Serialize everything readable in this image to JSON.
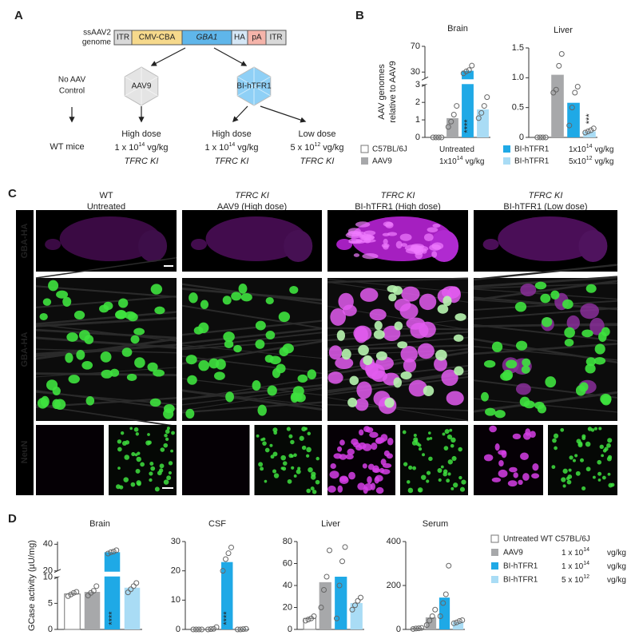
{
  "panel_labels": [
    "A",
    "B",
    "C",
    "D"
  ],
  "diagram": {
    "genome_label": [
      "ssAAV2",
      "genome"
    ],
    "cassette": [
      "ITR",
      "CMV-CBA",
      "GBA1",
      "HA",
      "pA",
      "ITR"
    ],
    "capsids": [
      "AAV9",
      "BI-hTFR1"
    ],
    "control": [
      "No AAV",
      "Control"
    ],
    "wt_label": "WT mice",
    "groups": [
      {
        "dose": "High dose",
        "amount": {
          "base": "1 x 10",
          "exp": "14",
          "unit": "vg/kg"
        },
        "genotype": "TFRC KI"
      },
      {
        "dose": "High dose",
        "amount": {
          "base": "1 x 10",
          "exp": "14",
          "unit": "vg/kg"
        },
        "genotype": "TFRC KI"
      },
      {
        "dose": "Low dose",
        "amount": {
          "base": "5 x 10",
          "exp": "12",
          "unit": "vg/kg"
        },
        "genotype": "TFRC KI"
      }
    ]
  },
  "legend_b": [
    {
      "name": "C57BL/6J",
      "color": "#ffffff",
      "dose": {
        "base": "Untreated"
      }
    },
    {
      "name": "AAV9",
      "color": "#a7a8aa",
      "dose": {
        "base": "1x10",
        "exp": "14",
        "unit": "vg/kg"
      }
    },
    {
      "name": "BI-hTFR1",
      "color": "#1fa9e6",
      "dose": {
        "base": "1x10",
        "exp": "14",
        "unit": "vg/kg"
      }
    },
    {
      "name": "BI-hTFR1",
      "color": "#a9dcf5",
      "dose": {
        "base": "5x10",
        "exp": "12",
        "unit": "vg/kg"
      }
    }
  ],
  "micrographs": {
    "columns": [
      {
        "genotype": "WT",
        "treatment": "Untreated"
      },
      {
        "genotype": "TFRC KI",
        "treatment": "AAV9 (High dose)"
      },
      {
        "genotype": "TFRC KI",
        "treatment": "BI-hTFR1 (High dose)"
      },
      {
        "genotype": "TFRC KI",
        "treatment": "BI-hTFR1 (Low dose)"
      }
    ],
    "stain_labels": [
      "GBA-HA",
      "GBA-HA",
      "NeuN"
    ]
  },
  "legend_d": [
    {
      "name": "Untreated WT C57BL/6J",
      "color": "#ffffff"
    },
    {
      "name": "AAV9",
      "color": "#a7a8aa",
      "dose": {
        "base": "1 x 10",
        "exp": "14",
        "unit": "vg/kg"
      }
    },
    {
      "name": "BI-hTFR1",
      "color": "#1fa9e6",
      "dose": {
        "base": "1 x 10",
        "exp": "14",
        "unit": "vg/kg"
      }
    },
    {
      "name": "BI-hTFR1",
      "color": "#a9dcf5",
      "dose": {
        "base": "5 x 10",
        "exp": "12",
        "unit": "vg/kg"
      }
    }
  ],
  "chart_data": [
    {
      "type": "bar",
      "title": "Brain",
      "ylabel": [
        "AAV genomes",
        "relative to AAV9"
      ],
      "colors": [
        "#ffffff",
        "#a7a8aa",
        "#1fa9e6",
        "#a9dcf5"
      ],
      "values": [
        0,
        1.1,
        32,
        1.6
      ],
      "points": [
        [
          0,
          0,
          0,
          0
        ],
        [
          0.6,
          0.9,
          1.3,
          1.8
        ],
        [
          28,
          31,
          33,
          40
        ],
        [
          1.1,
          1.4,
          1.8,
          2.3
        ]
      ],
      "significance": [
        null,
        null,
        "****",
        null
      ],
      "ysegments": [
        [
          0,
          3
        ],
        [
          20,
          70
        ]
      ],
      "yticks": [
        0,
        1,
        2,
        3,
        30,
        70
      ]
    },
    {
      "type": "bar",
      "title": "Liver",
      "colors": [
        "#ffffff",
        "#a7a8aa",
        "#1fa9e6",
        "#a9dcf5"
      ],
      "values": [
        0,
        1.05,
        0.58,
        0.1
      ],
      "points": [
        [
          0,
          0,
          0,
          0
        ],
        [
          0.75,
          0.8,
          1.2,
          1.4
        ],
        [
          0.2,
          0.5,
          0.75,
          0.85
        ],
        [
          0.08,
          0.1,
          0.12,
          0.15
        ]
      ],
      "significance": [
        null,
        null,
        null,
        "***"
      ],
      "ylim": [
        0,
        1.5
      ],
      "yticks": [
        0,
        0.5,
        {
          "value": 1,
          "label": "1.0"
        },
        1.5
      ]
    },
    {
      "type": "bar",
      "title": "Brain",
      "ylabel": "GCase activity (µU/mg)",
      "colors": [
        "#ffffff",
        "#a7a8aa",
        "#1fa9e6",
        "#a9dcf5"
      ],
      "values": [
        6.8,
        7.2,
        34,
        8
      ],
      "points": [
        [
          6.4,
          6.7,
          7,
          7.2
        ],
        [
          6.5,
          7,
          7.4,
          8.3
        ],
        [
          33,
          34,
          34.5,
          35.5
        ],
        [
          7.1,
          7.7,
          8.3,
          8.9
        ]
      ],
      "significance": [
        null,
        null,
        "****",
        null
      ],
      "ysegments": [
        [
          0,
          10
        ],
        [
          20,
          42
        ]
      ],
      "yticks": [
        0,
        5,
        10,
        20,
        40
      ]
    },
    {
      "type": "bar",
      "title": "CSF",
      "colors": [
        "#ffffff",
        "#a7a8aa",
        "#1fa9e6",
        "#a9dcf5"
      ],
      "values": [
        0,
        0.2,
        23,
        0.1
      ],
      "points": [
        [
          0,
          0,
          0,
          0
        ],
        [
          0,
          0.1,
          0.2,
          0.8
        ],
        [
          20,
          24,
          26,
          28
        ],
        [
          0,
          0,
          0.1,
          0.2
        ]
      ],
      "significance": [
        null,
        null,
        "****",
        null
      ],
      "ylim": [
        0,
        30
      ],
      "yticks": [
        0,
        10,
        20,
        30
      ]
    },
    {
      "type": "bar",
      "title": "Liver",
      "colors": [
        "#ffffff",
        "#a7a8aa",
        "#1fa9e6",
        "#a9dcf5"
      ],
      "values": [
        10,
        43,
        48,
        24
      ],
      "points": [
        [
          8,
          9,
          10,
          12
        ],
        [
          20,
          36,
          48,
          72
        ],
        [
          10,
          40,
          62,
          75
        ],
        [
          18,
          22,
          26,
          29
        ]
      ],
      "significance": [
        null,
        null,
        null,
        null
      ],
      "ylim": [
        0,
        80
      ],
      "yticks": [
        0,
        20,
        40,
        60,
        80
      ]
    },
    {
      "type": "bar",
      "title": "Serum",
      "colors": [
        "#ffffff",
        "#a7a8aa",
        "#1fa9e6",
        "#a9dcf5"
      ],
      "values": [
        5,
        55,
        145,
        35
      ],
      "points": [
        [
          2,
          4,
          5,
          7
        ],
        [
          20,
          40,
          60,
          90
        ],
        [
          60,
          120,
          160,
          290
        ],
        [
          28,
          32,
          38,
          42
        ]
      ],
      "significance": [
        null,
        null,
        null,
        null
      ],
      "ylim": [
        0,
        400
      ],
      "yticks": [
        0,
        200,
        400
      ]
    }
  ]
}
